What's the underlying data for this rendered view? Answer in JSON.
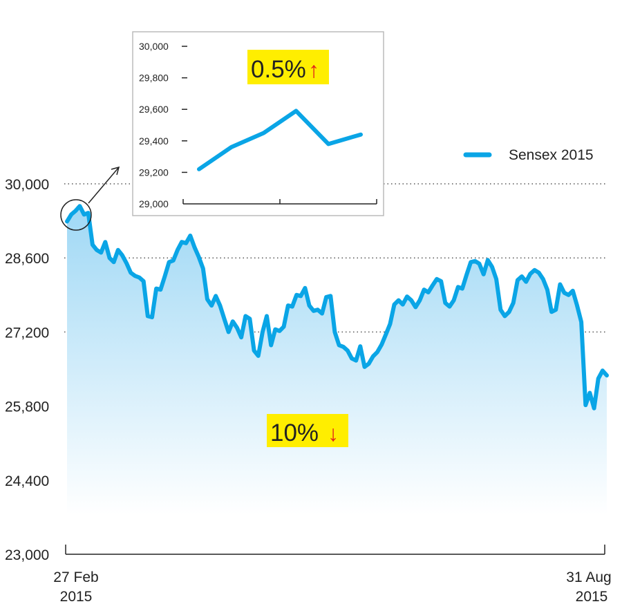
{
  "chart_data": {
    "type": "area",
    "legend": {
      "label": "Sensex 2015",
      "position": "top-right"
    },
    "colors": {
      "line": "#0aa5e6",
      "fill_top": "#9fd8f5",
      "fill_bottom": "#ffffff",
      "highlight": "#ffee00",
      "arrow_red": "#e2231a",
      "grid": "#555555",
      "axis": "#222222"
    },
    "main": {
      "y_range": [
        23000,
        30000
      ],
      "y_ticks": [
        "30,000",
        "28,600",
        "27,200",
        "25,800",
        "24,400",
        "23,000"
      ],
      "y_tick_values": [
        30000,
        28600,
        27200,
        25800,
        24400,
        23000
      ],
      "dotted_gridlines": [
        30000,
        28600,
        27200
      ],
      "x_start_label": [
        "27 Feb",
        "2015"
      ],
      "x_end_label": [
        "31 Aug",
        "2015"
      ],
      "annotation": {
        "text": "10%",
        "arrow": "↓"
      },
      "values": [
        29290,
        29420,
        29490,
        29580,
        29420,
        29450,
        28850,
        28750,
        28700,
        28900,
        28600,
        28520,
        28750,
        28650,
        28500,
        28320,
        28260,
        28230,
        28160,
        27500,
        27480,
        28020,
        28000,
        28250,
        28520,
        28550,
        28750,
        28900,
        28880,
        29020,
        28800,
        28620,
        28400,
        27820,
        27700,
        27880,
        27700,
        27450,
        27200,
        27400,
        27280,
        27100,
        27500,
        27450,
        26850,
        26750,
        27200,
        27500,
        26950,
        27250,
        27220,
        27300,
        27700,
        27680,
        27900,
        27880,
        28030,
        27700,
        27600,
        27620,
        27550,
        27860,
        27880,
        27200,
        26950,
        26920,
        26850,
        26700,
        26660,
        26930,
        26540,
        26600,
        26740,
        26820,
        26960,
        27150,
        27350,
        27720,
        27800,
        27720,
        27870,
        27800,
        27670,
        27800,
        28000,
        27950,
        28080,
        28200,
        28160,
        27750,
        27680,
        27800,
        28050,
        28020,
        28280,
        28520,
        28540,
        28490,
        28290,
        28560,
        28430,
        28200,
        27620,
        27500,
        27580,
        27750,
        28180,
        28250,
        28150,
        28300,
        28370,
        28320,
        28200,
        28000,
        27580,
        27620,
        28100,
        27940,
        27900,
        27980,
        27700,
        27390,
        25820,
        26050,
        25760,
        26320,
        26470,
        26380
      ]
    },
    "inset": {
      "y_range": [
        29000,
        30000
      ],
      "y_ticks": [
        "30,000",
        "29,800",
        "29,600",
        "29,400",
        "29,200",
        "29,000"
      ],
      "y_tick_values": [
        30000,
        29800,
        29600,
        29400,
        29200,
        29000
      ],
      "values": [
        29220,
        29360,
        29450,
        29590,
        29380,
        29440
      ],
      "annotation": {
        "text": "0.5%",
        "arrow": "↑"
      }
    }
  }
}
